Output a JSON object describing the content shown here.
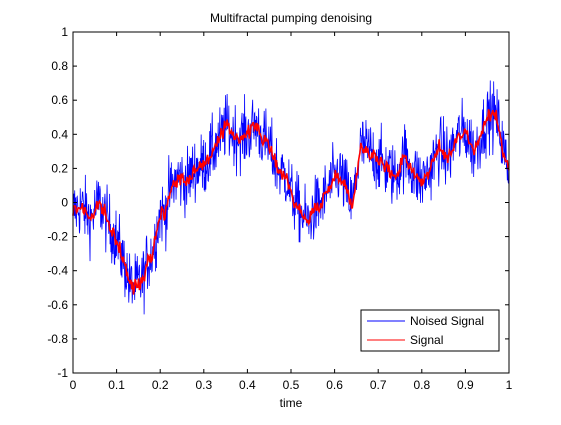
{
  "chart_data": {
    "type": "line",
    "title": "Multifractal pumping denoising",
    "xlabel": "time",
    "ylabel": "",
    "xlim": [
      0,
      1
    ],
    "ylim": [
      -1,
      1
    ],
    "x_ticks": [
      0,
      0.1,
      0.2,
      0.3,
      0.4,
      0.5,
      0.6,
      0.7,
      0.8,
      0.9,
      1
    ],
    "x_tick_labels": [
      "0",
      "0.1",
      "0.2",
      "0.3",
      "0.4",
      "0.5",
      "0.6",
      "0.7",
      "0.8",
      "0.9",
      "1"
    ],
    "y_ticks": [
      -1,
      -0.8,
      -0.6,
      -0.4,
      -0.2,
      0,
      0.2,
      0.4,
      0.6,
      0.8,
      1
    ],
    "y_tick_labels": [
      "-1",
      "-0.8",
      "-0.6",
      "-0.4",
      "-0.2",
      "0",
      "0.2",
      "0.4",
      "0.6",
      "0.8",
      "1"
    ],
    "grid": false,
    "legend_position": "bottom-right",
    "series": [
      {
        "name": "Noised Signal",
        "color": "#0000ff",
        "noise_amplitude": 0.17
      },
      {
        "name": "Signal",
        "color": "#ff0000",
        "x": [
          0,
          0.02,
          0.04,
          0.06,
          0.08,
          0.1,
          0.12,
          0.13,
          0.14,
          0.16,
          0.17,
          0.18,
          0.19,
          0.2,
          0.21,
          0.22,
          0.24,
          0.26,
          0.28,
          0.3,
          0.32,
          0.34,
          0.35,
          0.36,
          0.38,
          0.4,
          0.42,
          0.43,
          0.45,
          0.47,
          0.49,
          0.5,
          0.52,
          0.54,
          0.55,
          0.57,
          0.59,
          0.61,
          0.62,
          0.64,
          0.65,
          0.66,
          0.68,
          0.7,
          0.72,
          0.74,
          0.76,
          0.78,
          0.8,
          0.82,
          0.84,
          0.86,
          0.88,
          0.9,
          0.92,
          0.93,
          0.95,
          0.96,
          0.97,
          0.98,
          0.99,
          1.0
        ],
        "y": [
          -0.05,
          -0.02,
          -0.1,
          0.0,
          -0.12,
          -0.22,
          -0.38,
          -0.48,
          -0.5,
          -0.45,
          -0.35,
          -0.3,
          -0.2,
          -0.05,
          -0.08,
          0.05,
          0.15,
          0.12,
          0.2,
          0.22,
          0.3,
          0.38,
          0.45,
          0.42,
          0.38,
          0.4,
          0.46,
          0.4,
          0.32,
          0.2,
          0.15,
          0.05,
          -0.05,
          -0.12,
          -0.05,
          0.0,
          0.1,
          0.18,
          0.12,
          -0.02,
          0.15,
          0.33,
          0.3,
          0.25,
          0.2,
          0.15,
          0.28,
          0.18,
          0.12,
          0.2,
          0.32,
          0.26,
          0.38,
          0.42,
          0.3,
          0.36,
          0.5,
          0.52,
          0.5,
          0.42,
          0.26,
          0.2
        ]
      }
    ]
  }
}
